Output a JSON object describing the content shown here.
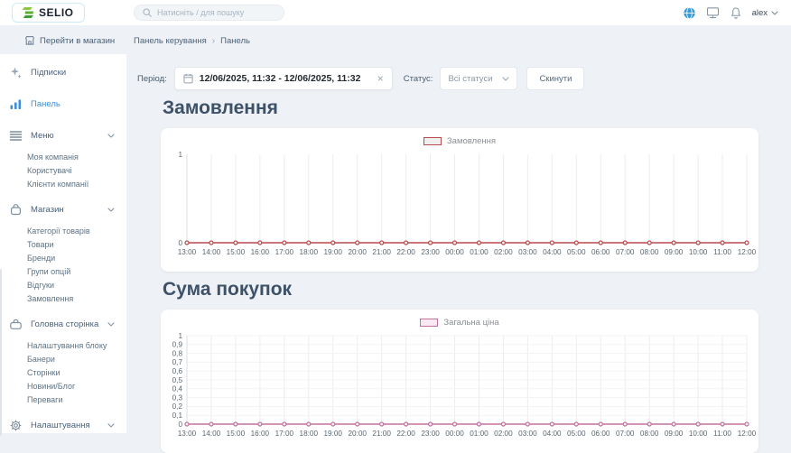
{
  "header": {
    "logo_text": "SELIO",
    "search_placeholder": "Натисніть / для пошуку",
    "user_name": "alex",
    "icons": [
      "globe-icon",
      "monitor-icon",
      "bell-icon"
    ]
  },
  "subheader": {
    "go_to_store": "Перейти в магазин",
    "breadcrumb": [
      "Панель керування",
      "Панель"
    ],
    "breadcrumb_separator": "›"
  },
  "sidebar": {
    "items": [
      {
        "key": "subscriptions",
        "icon": "subscriptions",
        "label": "Підписки",
        "active": false,
        "expanded": false,
        "children": []
      },
      {
        "key": "dashboard",
        "icon": "dashboard",
        "label": "Панель",
        "active": true,
        "expanded": false,
        "children": []
      },
      {
        "key": "menu",
        "icon": "menu",
        "label": "Меню",
        "active": false,
        "expanded": true,
        "children": [
          "Моя компанія",
          "Користувачі",
          "Клієнти компанії"
        ]
      },
      {
        "key": "store",
        "icon": "store",
        "label": "Магазин",
        "active": false,
        "expanded": true,
        "children": [
          "Категорії товарів",
          "Товари",
          "Бренди",
          "Групи опцій",
          "Відгуки",
          "Замовлення"
        ]
      },
      {
        "key": "homepage",
        "icon": "homepage",
        "label": "Головна сторінка",
        "active": false,
        "expanded": true,
        "children": [
          "Налаштування блоку",
          "Банери",
          "Сторінки",
          "Новини/Блог",
          "Переваги"
        ]
      },
      {
        "key": "settings",
        "icon": "settings",
        "label": "Налаштування",
        "active": false,
        "expanded": true,
        "children": []
      }
    ]
  },
  "filters": {
    "period_label": "Період:",
    "period_value": "12/06/2025, 11:32 - 12/06/2025, 11:32",
    "status_label": "Статус:",
    "status_value": "Всі статуси",
    "reset_button": "Скинути"
  },
  "colors": {
    "accent_blue": "#3e8fd8",
    "orders_line": "#b94a4d",
    "price_line": "#c4709f",
    "grid": "#ededed",
    "grid_h": "#f3f3f3",
    "axis": "#d9dee4",
    "tick_text": "#5b6670"
  },
  "chart_data": [
    {
      "type": "line",
      "title": "Замовлення",
      "legend_label": "Замовлення",
      "x": [
        "13:00",
        "14:00",
        "15:00",
        "16:00",
        "17:00",
        "18:00",
        "19:00",
        "20:00",
        "21:00",
        "22:00",
        "23:00",
        "00:00",
        "01:00",
        "02:00",
        "03:00",
        "04:00",
        "05:00",
        "06:00",
        "07:00",
        "08:00",
        "09:00",
        "10:00",
        "11:00",
        "12:00"
      ],
      "series": [
        {
          "name": "Замовлення",
          "color": "#b94a4d",
          "swatch_fill": "#f0efef",
          "values": [
            0,
            0,
            0,
            0,
            0,
            0,
            0,
            0,
            0,
            0,
            0,
            0,
            0,
            0,
            0,
            0,
            0,
            0,
            0,
            0,
            0,
            0,
            0,
            0
          ]
        }
      ],
      "ylim": [
        0,
        1
      ],
      "yticks": [
        {
          "label": "1",
          "value": 1
        },
        {
          "label": "0",
          "value": 0
        }
      ],
      "grid": "vertical",
      "legend_position": "top-center"
    },
    {
      "type": "line",
      "title": "Сума покупок",
      "legend_label": "Загальна ціна",
      "x": [
        "13:00",
        "14:00",
        "15:00",
        "16:00",
        "17:00",
        "18:00",
        "19:00",
        "20:00",
        "21:00",
        "22:00",
        "23:00",
        "00:00",
        "01:00",
        "02:00",
        "03:00",
        "04:00",
        "05:00",
        "06:00",
        "07:00",
        "08:00",
        "09:00",
        "10:00",
        "11:00",
        "12:00"
      ],
      "series": [
        {
          "name": "Загальна ціна",
          "color": "#c4709f",
          "swatch_fill": "#f8e9f2",
          "values": [
            0,
            0,
            0,
            0,
            0,
            0,
            0,
            0,
            0,
            0,
            0,
            0,
            0,
            0,
            0,
            0,
            0,
            0,
            0,
            0,
            0,
            0,
            0,
            0
          ]
        }
      ],
      "ylim": [
        0,
        1
      ],
      "yticks": [
        {
          "label": "1",
          "value": 1
        },
        {
          "label": "0,9",
          "value": 0.9
        },
        {
          "label": "0,8",
          "value": 0.8
        },
        {
          "label": "0,7",
          "value": 0.7
        },
        {
          "label": "0,6",
          "value": 0.6
        },
        {
          "label": "0,5",
          "value": 0.5
        },
        {
          "label": "0,4",
          "value": 0.4
        },
        {
          "label": "0,3",
          "value": 0.3
        },
        {
          "label": "0,2",
          "value": 0.2
        },
        {
          "label": "0,1",
          "value": 0.1
        },
        {
          "label": "0",
          "value": 0
        }
      ],
      "grid": "both",
      "legend_position": "top-center"
    }
  ]
}
